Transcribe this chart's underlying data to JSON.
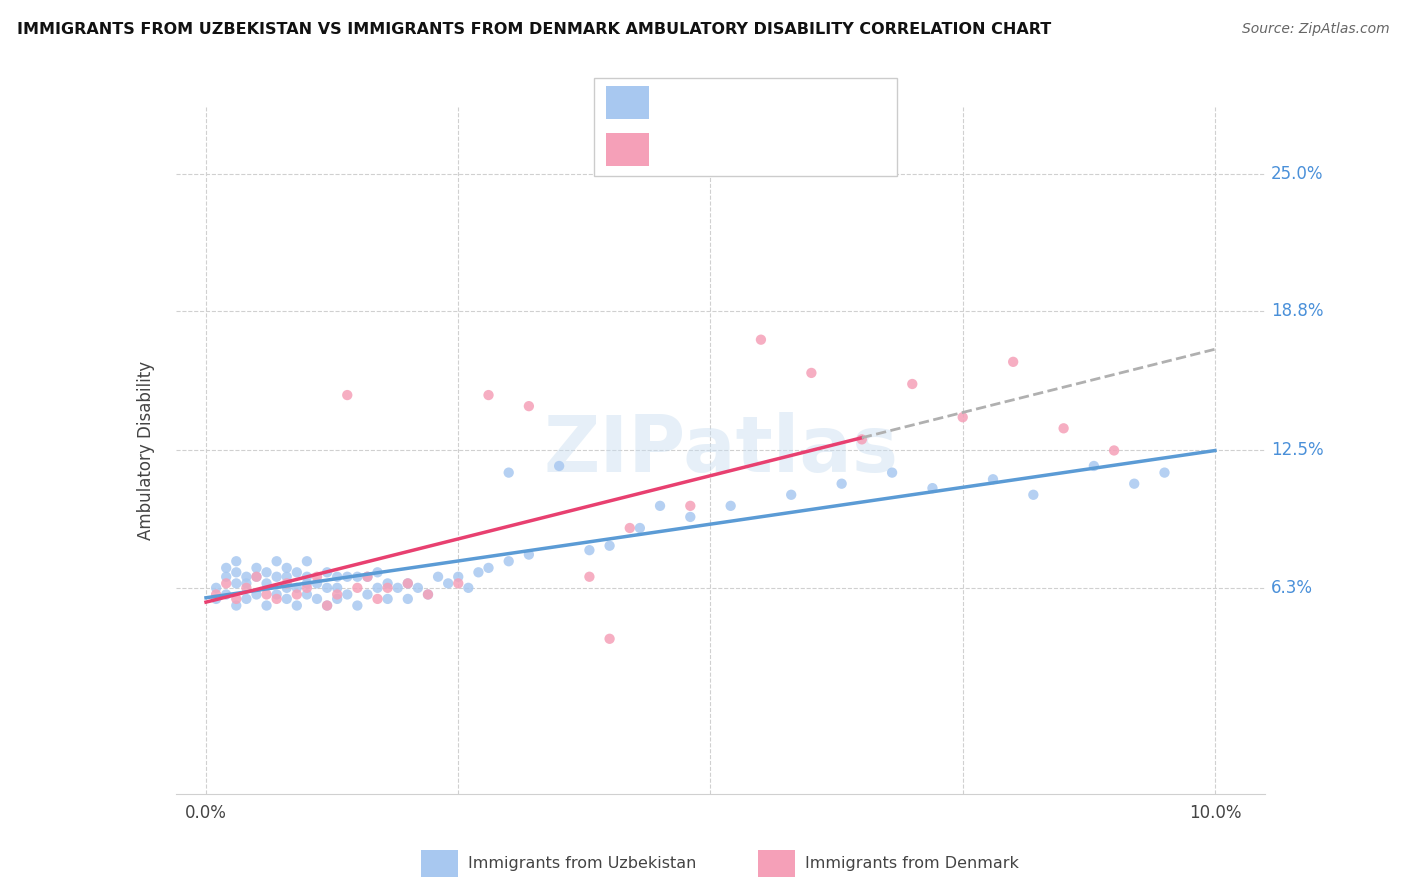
{
  "title": "IMMIGRANTS FROM UZBEKISTAN VS IMMIGRANTS FROM DENMARK AMBULATORY DISABILITY CORRELATION CHART",
  "source": "Source: ZipAtlas.com",
  "ylabel": "Ambulatory Disability",
  "color_uzbekistan": "#a8c8f0",
  "color_denmark": "#f5a0b8",
  "trendline_uzbekistan_color": "#5b9bd5",
  "trendline_denmark_color": "#e84070",
  "trendline_dashed_color": "#b0b0b0",
  "background_color": "#ffffff",
  "ytick_vals": [
    0.063,
    0.125,
    0.188,
    0.25
  ],
  "ytick_labels": [
    "6.3%",
    "12.5%",
    "18.8%",
    "25.0%"
  ],
  "xtick_vals": [
    0.0,
    0.025,
    0.05,
    0.075,
    0.1
  ],
  "xtick_labels": [
    "0.0%",
    "",
    "",
    "",
    "10.0%"
  ],
  "xlim": [
    -0.003,
    0.105
  ],
  "ylim": [
    -0.03,
    0.28
  ]
}
